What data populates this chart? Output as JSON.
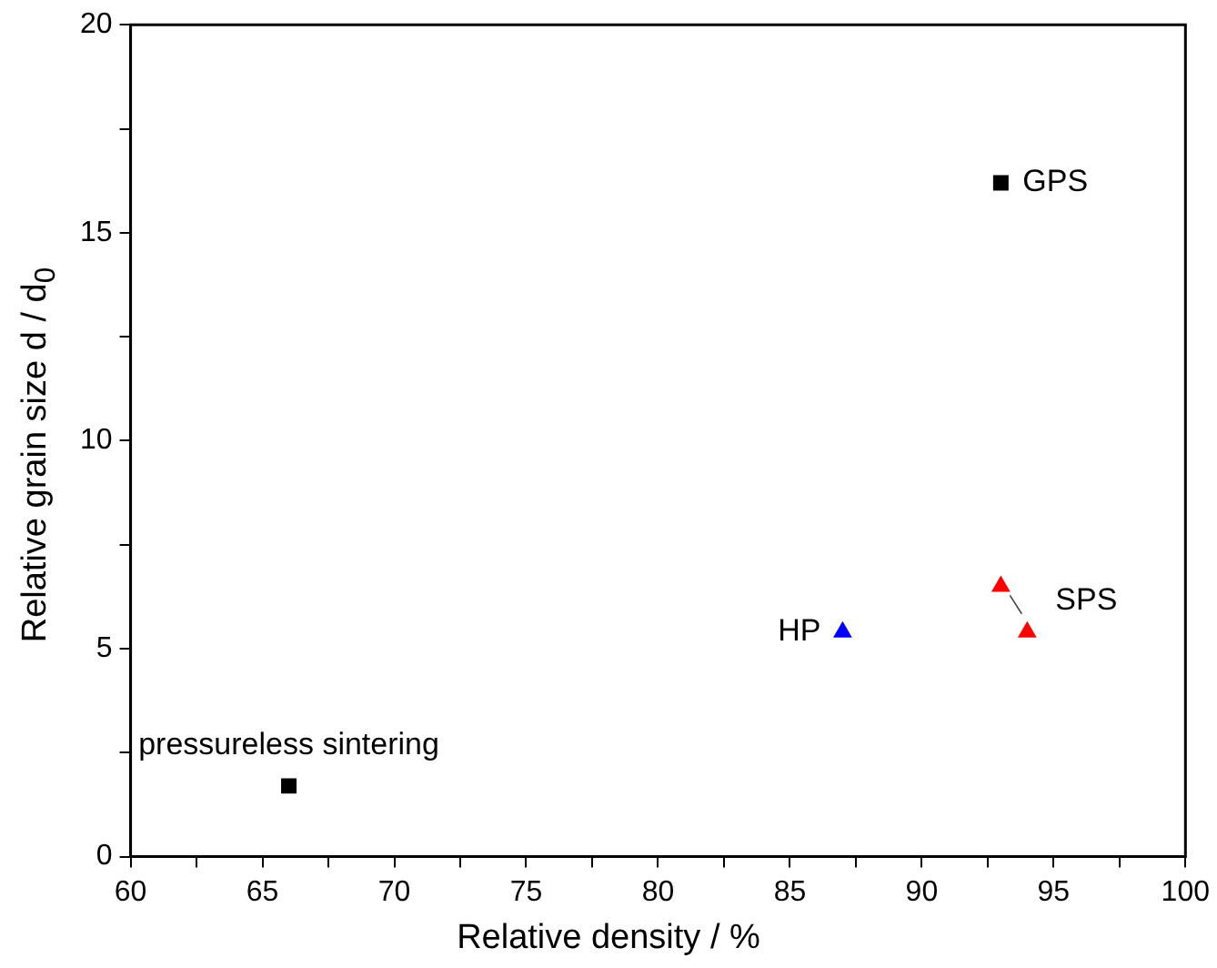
{
  "chart_data": {
    "type": "scatter",
    "xlabel": "Relative density / %",
    "ylabel": "Relative grain size d / d$_{0}$",
    "xlim": [
      60,
      100
    ],
    "ylim": [
      0,
      20
    ],
    "xticks": [
      60,
      {
        "value": 62.5,
        "label": null
      },
      65,
      {
        "value": 67.5,
        "label": null
      },
      70,
      {
        "value": 72.5,
        "label": null
      },
      75,
      {
        "value": 77.5,
        "label": null
      },
      80,
      {
        "value": 82.5,
        "label": null
      },
      85,
      {
        "value": 87.5,
        "label": null
      },
      90,
      {
        "value": 92.5,
        "label": null
      },
      95,
      {
        "value": 97.5,
        "label": null
      },
      100
    ],
    "yticks": [
      0,
      {
        "value": 2.5,
        "label": null
      },
      5,
      {
        "value": 7.5,
        "label": null
      },
      10,
      {
        "value": 12.5,
        "label": null
      },
      15,
      {
        "value": 17.5,
        "label": null
      },
      20
    ],
    "grid": false,
    "legend": false,
    "series": [
      {
        "name": "pressureless sintering",
        "color": "#000000",
        "marker": "square",
        "x": [
          66
        ],
        "values": [
          1.7
        ]
      },
      {
        "name": "GPS",
        "color": "#000000",
        "marker": "square",
        "x": [
          93
        ],
        "values": [
          16.2
        ]
      },
      {
        "name": "HP",
        "color": "#0000ff",
        "marker": "triangle",
        "x": [
          87
        ],
        "values": [
          5.4
        ]
      },
      {
        "name": "SPS",
        "color": "#ff0000",
        "marker": "triangle",
        "x": [
          93,
          94
        ],
        "values": [
          6.5,
          5.4
        ]
      }
    ]
  }
}
